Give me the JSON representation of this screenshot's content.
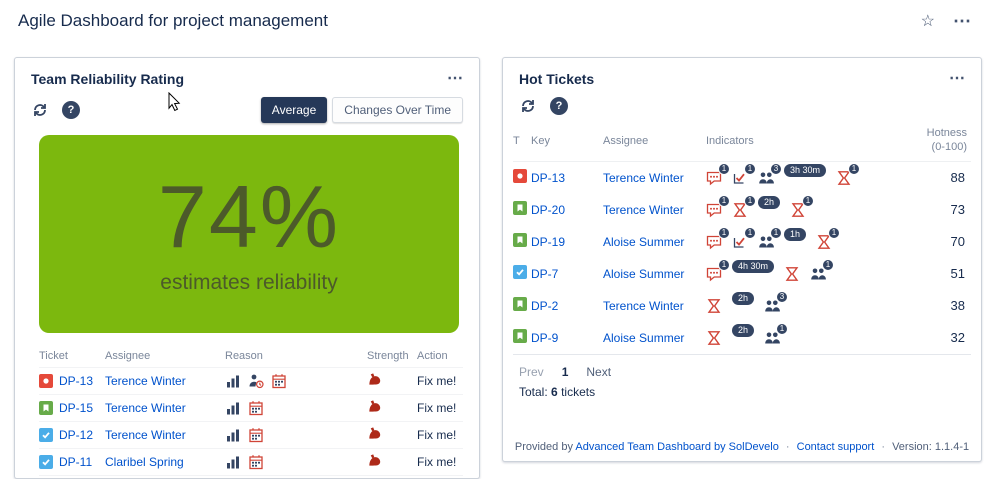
{
  "colors": {
    "link": "#0052cc",
    "navy": "#344563",
    "red": "#d04437",
    "active_btn": "#253858"
  },
  "page": {
    "title": "Agile Dashboard for project management"
  },
  "top_actions": {
    "star": "☆",
    "more": "⋯"
  },
  "reliability_panel": {
    "title": "Team Reliability Rating",
    "more": "⋯",
    "toggle": {
      "average": "Average",
      "changes": "Changes Over Time"
    },
    "gauge": {
      "value": "74%",
      "label": "estimates reliability",
      "bg": "#7cb80e",
      "fg": "#4c5a2a"
    },
    "table": {
      "headers": [
        "Ticket",
        "Assignee",
        "Reason",
        "Strength",
        "Action"
      ],
      "rows": [
        {
          "type": "bug",
          "key": "DP-13",
          "assignee": "Terence Winter",
          "reasons": [
            "bar-chart",
            "person-clock",
            "calendar"
          ],
          "strength": true,
          "action": "Fix me!"
        },
        {
          "type": "story",
          "key": "DP-15",
          "assignee": "Terence Winter",
          "reasons": [
            "bar-chart",
            "calendar"
          ],
          "strength": true,
          "action": "Fix me!"
        },
        {
          "type": "task",
          "key": "DP-12",
          "assignee": "Terence Winter",
          "reasons": [
            "bar-chart",
            "calendar"
          ],
          "strength": true,
          "action": "Fix me!"
        },
        {
          "type": "task",
          "key": "DP-11",
          "assignee": "Claribel Spring",
          "reasons": [
            "bar-chart",
            "calendar"
          ],
          "strength": true,
          "action": "Fix me!"
        },
        {
          "type": "",
          "key": "",
          "assignee": "",
          "reasons": [
            "bar-chart",
            "calendar"
          ],
          "strength": false,
          "action": ""
        }
      ]
    }
  },
  "hot_panel": {
    "title": "Hot Tickets",
    "more": "⋯",
    "headers": {
      "t": "T",
      "key": "Key",
      "assignee": "Assignee",
      "indicators": "Indicators",
      "hotness_line1": "Hotness",
      "hotness_line2": "(0-100)"
    },
    "rows": [
      {
        "type": "bug",
        "key": "DP-13",
        "assignee": "Terence Winter",
        "hotness": "88",
        "indicators": [
          {
            "icon": "comment",
            "badge": "1"
          },
          {
            "icon": "check",
            "badge": "1"
          },
          {
            "icon": "people",
            "badge": "3"
          },
          {
            "icon": "pill",
            "label": "3h 30m"
          },
          {
            "icon": "hourglass",
            "badge": "1"
          }
        ]
      },
      {
        "type": "story",
        "key": "DP-20",
        "assignee": "Terence Winter",
        "hotness": "73",
        "indicators": [
          {
            "icon": "comment",
            "badge": "1"
          },
          {
            "icon": "hourglass",
            "badge": "1"
          },
          {
            "icon": "pill",
            "label": "2h"
          },
          {
            "icon": "hourglass",
            "badge": "1"
          }
        ]
      },
      {
        "type": "story",
        "key": "DP-19",
        "assignee": "Aloise Summer",
        "hotness": "70",
        "indicators": [
          {
            "icon": "comment",
            "badge": "1"
          },
          {
            "icon": "check",
            "badge": "1"
          },
          {
            "icon": "people",
            "badge": "1"
          },
          {
            "icon": "pill",
            "label": "1h"
          },
          {
            "icon": "hourglass",
            "badge": "1"
          }
        ]
      },
      {
        "type": "task",
        "key": "DP-7",
        "assignee": "Aloise Summer",
        "hotness": "51",
        "indicators": [
          {
            "icon": "comment",
            "badge": "1"
          },
          {
            "icon": "pill",
            "label": "4h 30m"
          },
          {
            "icon": "hourglass",
            "badge": ""
          },
          {
            "icon": "people",
            "badge": "1"
          }
        ]
      },
      {
        "type": "story",
        "key": "DP-2",
        "assignee": "Terence Winter",
        "hotness": "38",
        "indicators": [
          {
            "icon": "hourglass",
            "badge": ""
          },
          {
            "icon": "pill",
            "label": "2h"
          },
          {
            "icon": "people",
            "badge": "3"
          }
        ]
      },
      {
        "type": "story",
        "key": "DP-9",
        "assignee": "Aloise Summer",
        "hotness": "32",
        "indicators": [
          {
            "icon": "hourglass",
            "badge": ""
          },
          {
            "icon": "pill",
            "label": "2h"
          },
          {
            "icon": "people",
            "badge": "1"
          }
        ]
      }
    ],
    "pagination": {
      "prev": "Prev",
      "page": "1",
      "next": "Next"
    },
    "total": {
      "label": "Total:",
      "count": "6",
      "suffix": "tickets"
    },
    "footer": {
      "provided_by": "Provided by",
      "dashboard_link": "Advanced Team Dashboard by SolDevelo",
      "separator": "·",
      "support_link": "Contact support",
      "version": "Version: 1.1.4-1"
    }
  }
}
